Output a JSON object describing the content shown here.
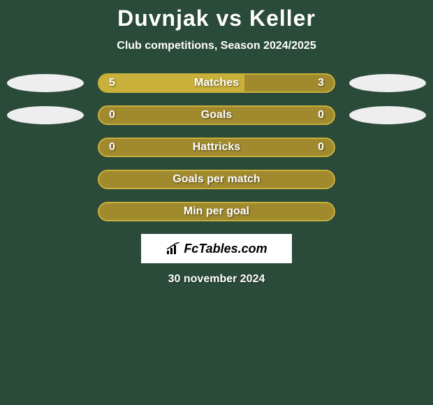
{
  "title": "Duvnjak vs Keller",
  "subtitle": "Club competitions, Season 2024/2025",
  "date": "30 november 2024",
  "logo_text": "FcTables.com",
  "background_color": "#2a4a3a",
  "bar_bg_color": "#a18a2e",
  "bar_border_color": "#c9b03a",
  "bar_fill_color": "#c9b03a",
  "ellipse_color": "#eeeeee",
  "font_family": "Arial, Helvetica, sans-serif",
  "title_fontsize": 32,
  "subtitle_fontsize": 16,
  "bar_label_fontsize": 16,
  "rows": [
    {
      "label": "Matches",
      "left_value": "5",
      "right_value": "3",
      "left_fill_pct": 62,
      "right_fill_pct": 0,
      "show_ellipses": true
    },
    {
      "label": "Goals",
      "left_value": "0",
      "right_value": "0",
      "left_fill_pct": 0,
      "right_fill_pct": 0,
      "show_ellipses": true
    },
    {
      "label": "Hattricks",
      "left_value": "0",
      "right_value": "0",
      "left_fill_pct": 0,
      "right_fill_pct": 0,
      "show_ellipses": false
    },
    {
      "label": "Goals per match",
      "left_value": "",
      "right_value": "",
      "left_fill_pct": 0,
      "right_fill_pct": 0,
      "show_ellipses": false
    },
    {
      "label": "Min per goal",
      "left_value": "",
      "right_value": "",
      "left_fill_pct": 0,
      "right_fill_pct": 0,
      "show_ellipses": false
    }
  ]
}
